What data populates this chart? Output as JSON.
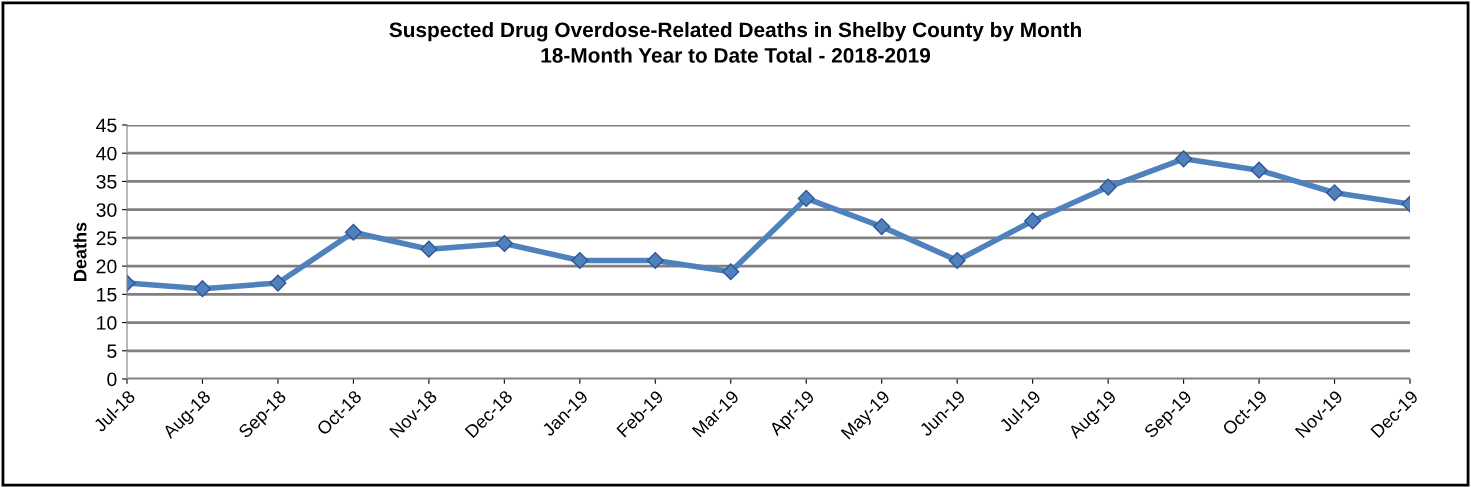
{
  "chart_data": {
    "type": "line",
    "title": "Suspected Drug Overdose-Related Deaths in Shelby County by Month\n18-Month Year to Date Total - 2018-2019",
    "ylabel": "Deaths",
    "categories": [
      "Jul-18",
      "Aug-18",
      "Sep-18",
      "Oct-18",
      "Nov-18",
      "Dec-18",
      "Jan-19",
      "Feb-19",
      "Mar-19",
      "Apr-19",
      "May-19",
      "Jun-19",
      "Jul-19",
      "Aug-19",
      "Sep-19",
      "Oct-19",
      "Nov-19",
      "Dec-19"
    ],
    "series": [
      {
        "color": "#4f81bd",
        "values": [
          17,
          16,
          17,
          26,
          23,
          24,
          21,
          21,
          19,
          32,
          27,
          21,
          28,
          34,
          39,
          37,
          33,
          31
        ]
      }
    ],
    "ylim": [
      0,
      45
    ],
    "yticks": [
      0,
      5,
      10,
      15,
      20,
      25,
      30,
      35,
      40,
      45
    ],
    "grid": "y",
    "legend": false,
    "marker": "diamond",
    "line_style": "solid"
  }
}
